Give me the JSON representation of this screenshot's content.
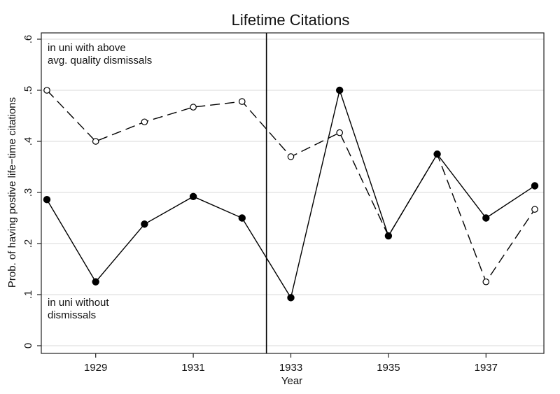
{
  "chart_data": {
    "type": "line",
    "title": "Lifetime Citations",
    "xlabel": "Year",
    "ylabel": "Prob. of having postive life−time citations",
    "xlim": [
      1928,
      1938
    ],
    "ylim": [
      0,
      0.6
    ],
    "xticks": [
      1929,
      1931,
      1933,
      1935,
      1937
    ],
    "xtick_labels": [
      "1929",
      "1931",
      "1933",
      "1935",
      "1937"
    ],
    "yticks": [
      0,
      0.1,
      0.2,
      0.3,
      0.4,
      0.5,
      0.6
    ],
    "ytick_labels": [
      "0",
      ".1",
      ".2",
      ".3",
      ".4",
      ".5",
      ".6"
    ],
    "grid": true,
    "vertical_line_x": 1932.5,
    "series": [
      {
        "style": "dashed-hollow",
        "x": [
          1928,
          1929,
          1930,
          1931,
          1932,
          1933,
          1934,
          1935,
          1936,
          1937,
          1938
        ],
        "values": [
          0.5,
          0.4,
          0.438,
          0.467,
          0.478,
          0.37,
          0.417,
          0.215,
          0.375,
          0.125,
          0.267
        ]
      },
      {
        "style": "solid-filled",
        "x": [
          1928,
          1929,
          1930,
          1931,
          1932,
          1933,
          1934,
          1935,
          1936,
          1937,
          1938
        ],
        "values": [
          0.286,
          0.125,
          0.238,
          0.292,
          0.25,
          0.094,
          0.5,
          0.215,
          0.375,
          0.25,
          0.313
        ]
      }
    ],
    "annotations": [
      {
        "lines": [
          "in uni with above",
          "avg. quality dismissals"
        ],
        "position": "top-left"
      },
      {
        "lines": [
          "in uni without",
          "dismissals"
        ],
        "position": "bottom-left"
      }
    ]
  }
}
